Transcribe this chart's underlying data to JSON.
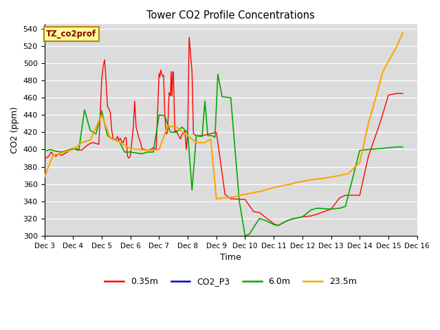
{
  "title": "Tower CO2 Profile Concentrations",
  "xlabel": "Time",
  "ylabel": "CO2 (ppm)",
  "ylim": [
    300,
    545
  ],
  "xlim": [
    3,
    16
  ],
  "yticks": [
    300,
    320,
    340,
    360,
    380,
    400,
    420,
    440,
    460,
    480,
    500,
    520,
    540
  ],
  "xtick_positions": [
    3,
    4,
    5,
    6,
    7,
    8,
    9,
    10,
    11,
    12,
    13,
    14,
    15,
    16
  ],
  "xtick_labels": [
    "Dec 3",
    "Dec 4",
    "Dec 5",
    "Dec 6",
    "Dec 7",
    "Dec 8",
    "Dec 9",
    "Dec 10",
    "Dec 11",
    "Dec 12",
    "Dec 13",
    "Dec 14",
    "Dec 15",
    "Dec 16"
  ],
  "bg_color": "#dcdcdc",
  "annotation_text": "TZ_co2prof",
  "annotation_bg": "#ffff99",
  "annotation_border": "#b8860b",
  "series_order": [
    "0.35m",
    "CO2_P3",
    "6.0m",
    "23.5m"
  ],
  "series": {
    "0.35m": {
      "color": "#ff0000",
      "lw": 1.0,
      "x": [
        3.0,
        3.1,
        3.15,
        3.2,
        3.25,
        3.3,
        3.4,
        3.5,
        3.6,
        3.7,
        3.8,
        3.9,
        4.0,
        4.1,
        4.2,
        4.3,
        4.4,
        4.5,
        4.6,
        4.7,
        4.8,
        4.9,
        5.0,
        5.05,
        5.1,
        5.15,
        5.2,
        5.25,
        5.3,
        5.35,
        5.4,
        5.45,
        5.5,
        5.55,
        5.6,
        5.65,
        5.7,
        5.75,
        5.8,
        5.85,
        5.9,
        5.95,
        6.0,
        6.1,
        6.15,
        6.2,
        6.3,
        6.35,
        6.4,
        6.5,
        6.6,
        6.7,
        6.8,
        6.9,
        7.0,
        7.03,
        7.06,
        7.1,
        7.13,
        7.16,
        7.2,
        7.25,
        7.3,
        7.35,
        7.4,
        7.42,
        7.45,
        7.48,
        7.5,
        7.55,
        7.6,
        7.65,
        7.7,
        7.75,
        7.8,
        7.85,
        7.9,
        7.95,
        8.0,
        8.05,
        8.1,
        8.15,
        8.2,
        8.3,
        8.4,
        8.5,
        9.0,
        9.3,
        9.5,
        10.0,
        10.3,
        10.5,
        11.0,
        11.15,
        11.5,
        11.7,
        12.0,
        12.3,
        12.5,
        13.0,
        13.3,
        13.5,
        14.0,
        14.3,
        14.7,
        15.0,
        15.3,
        15.5
      ],
      "y": [
        389,
        391,
        392,
        395,
        397,
        394,
        392,
        395,
        393,
        395,
        397,
        400,
        401,
        401,
        400,
        399,
        402,
        405,
        407,
        408,
        407,
        406,
        481,
        496,
        504,
        480,
        450,
        447,
        443,
        422,
        413,
        411,
        412,
        415,
        411,
        413,
        409,
        408,
        413,
        414,
        392,
        390,
        393,
        425,
        456,
        426,
        413,
        409,
        401,
        400,
        399,
        400,
        402,
        400,
        488,
        484,
        492,
        487,
        485,
        486,
        440,
        418,
        420,
        466,
        462,
        490,
        462,
        490,
        490,
        420,
        422,
        418,
        415,
        412,
        418,
        418,
        422,
        400,
        420,
        530,
        510,
        490,
        418,
        416,
        416,
        416,
        420,
        348,
        343,
        342,
        328,
        327,
        314,
        312,
        318,
        320,
        322,
        323,
        325,
        331,
        344,
        347,
        347,
        392,
        430,
        463,
        465,
        465
      ]
    },
    "CO2_P3": {
      "color": "#0000cc",
      "lw": 1.0,
      "x": [],
      "y": []
    },
    "6.0m": {
      "color": "#00aa00",
      "lw": 1.2,
      "x": [
        3.0,
        3.2,
        3.4,
        3.6,
        3.8,
        4.0,
        4.2,
        4.4,
        4.6,
        4.8,
        5.0,
        5.2,
        5.4,
        5.6,
        5.8,
        6.0,
        6.2,
        6.4,
        6.6,
        6.8,
        7.0,
        7.2,
        7.4,
        7.6,
        7.8,
        8.0,
        8.15,
        8.3,
        8.5,
        8.6,
        8.7,
        8.85,
        8.95,
        9.05,
        9.2,
        9.5,
        9.8,
        10.0,
        10.15,
        10.5,
        10.7,
        11.0,
        11.15,
        11.5,
        11.7,
        12.0,
        12.3,
        12.5,
        13.0,
        13.3,
        13.5,
        14.0,
        14.3,
        14.7,
        15.0,
        15.3,
        15.5
      ],
      "y": [
        398,
        400,
        398,
        397,
        399,
        401,
        399,
        446,
        422,
        418,
        445,
        416,
        412,
        410,
        397,
        397,
        396,
        395,
        397,
        397,
        440,
        439,
        420,
        420,
        426,
        419,
        353,
        416,
        415,
        456,
        416,
        416,
        414,
        487,
        461,
        460,
        340,
        300,
        302,
        320,
        318,
        313,
        312,
        318,
        320,
        322,
        330,
        332,
        331,
        332,
        334,
        399,
        400,
        401,
        402,
        403,
        403
      ]
    },
    "23.5m": {
      "color": "#ffa500",
      "lw": 1.5,
      "x": [
        3.0,
        3.3,
        3.7,
        4.0,
        4.3,
        4.6,
        5.0,
        5.3,
        5.6,
        6.0,
        6.3,
        6.6,
        7.0,
        7.3,
        7.6,
        8.0,
        8.3,
        8.6,
        8.8,
        9.0,
        9.3,
        9.6,
        9.8,
        10.0,
        10.3,
        10.6,
        10.8,
        11.0,
        11.3,
        11.6,
        11.8,
        12.0,
        12.3,
        12.6,
        12.8,
        13.0,
        13.3,
        13.6,
        14.0,
        14.3,
        14.6,
        14.8,
        15.0,
        15.3,
        15.5
      ],
      "y": [
        368,
        393,
        397,
        400,
        408,
        411,
        440,
        413,
        409,
        401,
        400,
        399,
        400,
        427,
        426,
        416,
        408,
        408,
        412,
        343,
        344,
        345,
        347,
        348,
        350,
        352,
        354,
        356,
        358,
        360,
        362,
        363,
        365,
        366,
        367,
        368,
        370,
        372,
        385,
        430,
        465,
        490,
        502,
        520,
        535
      ]
    }
  },
  "legend_entries": [
    "0.35m",
    "CO2_P3",
    "6.0m",
    "23.5m"
  ],
  "legend_colors": [
    "#ff0000",
    "#0000cc",
    "#00aa00",
    "#ffa500"
  ]
}
